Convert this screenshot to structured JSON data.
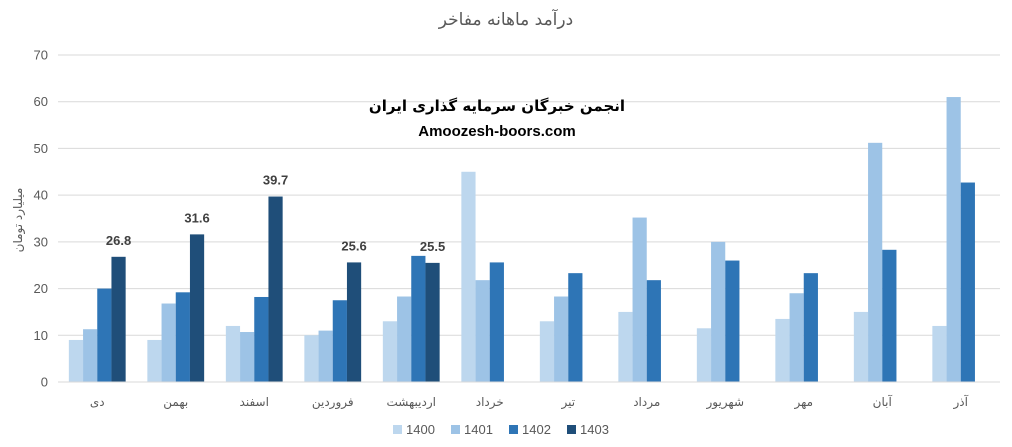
{
  "chart_data": {
    "type": "bar",
    "title": "درآمد ماهانه مفاخر",
    "ylabel": "میلیارد تومان",
    "xlabel": "",
    "ylim": [
      0,
      70
    ],
    "yticks": [
      0,
      10,
      20,
      30,
      40,
      50,
      60,
      70
    ],
    "grid": true,
    "legend_position": "bottom",
    "categories": [
      "دی",
      "بهمن",
      "اسفند",
      "فروردین",
      "اردیبهشت",
      "خرداد",
      "تیر",
      "مرداد",
      "شهریور",
      "مهر",
      "آبان",
      "آذر"
    ],
    "series": [
      {
        "name": "1400",
        "color": "#BDD7EE",
        "values": [
          9.0,
          9.0,
          12.0,
          10.0,
          13.0,
          45.0,
          13.0,
          15.0,
          11.5,
          13.5,
          15.0,
          12.0
        ]
      },
      {
        "name": "1401",
        "color": "#9DC3E6",
        "values": [
          11.3,
          16.8,
          10.7,
          11.0,
          18.3,
          21.8,
          18.3,
          35.2,
          30.0,
          19.0,
          51.2,
          61.0
        ]
      },
      {
        "name": "1402",
        "color": "#2E75B6",
        "values": [
          20.0,
          19.2,
          18.2,
          17.5,
          27.0,
          25.6,
          23.3,
          21.8,
          26.0,
          23.3,
          28.3,
          42.7
        ]
      },
      {
        "name": "1403",
        "color": "#1F4E79",
        "values": [
          26.8,
          31.6,
          39.7,
          25.6,
          25.5,
          null,
          null,
          null,
          null,
          null,
          null,
          null
        ]
      }
    ],
    "data_labels": [
      {
        "series": "1403",
        "category": "دی",
        "text": "26.8"
      },
      {
        "series": "1403",
        "category": "بهمن",
        "text": "31.6"
      },
      {
        "series": "1403",
        "category": "اسفند",
        "text": "39.7"
      },
      {
        "series": "1403",
        "category": "فروردین",
        "text": "25.6"
      },
      {
        "series": "1403",
        "category": "اردیبهشت",
        "text": "25.5"
      }
    ],
    "watermark": {
      "line1": "انجمن خبرگان سرمایه گذاری ایران",
      "line2": "Amoozesh-boors.com"
    }
  }
}
